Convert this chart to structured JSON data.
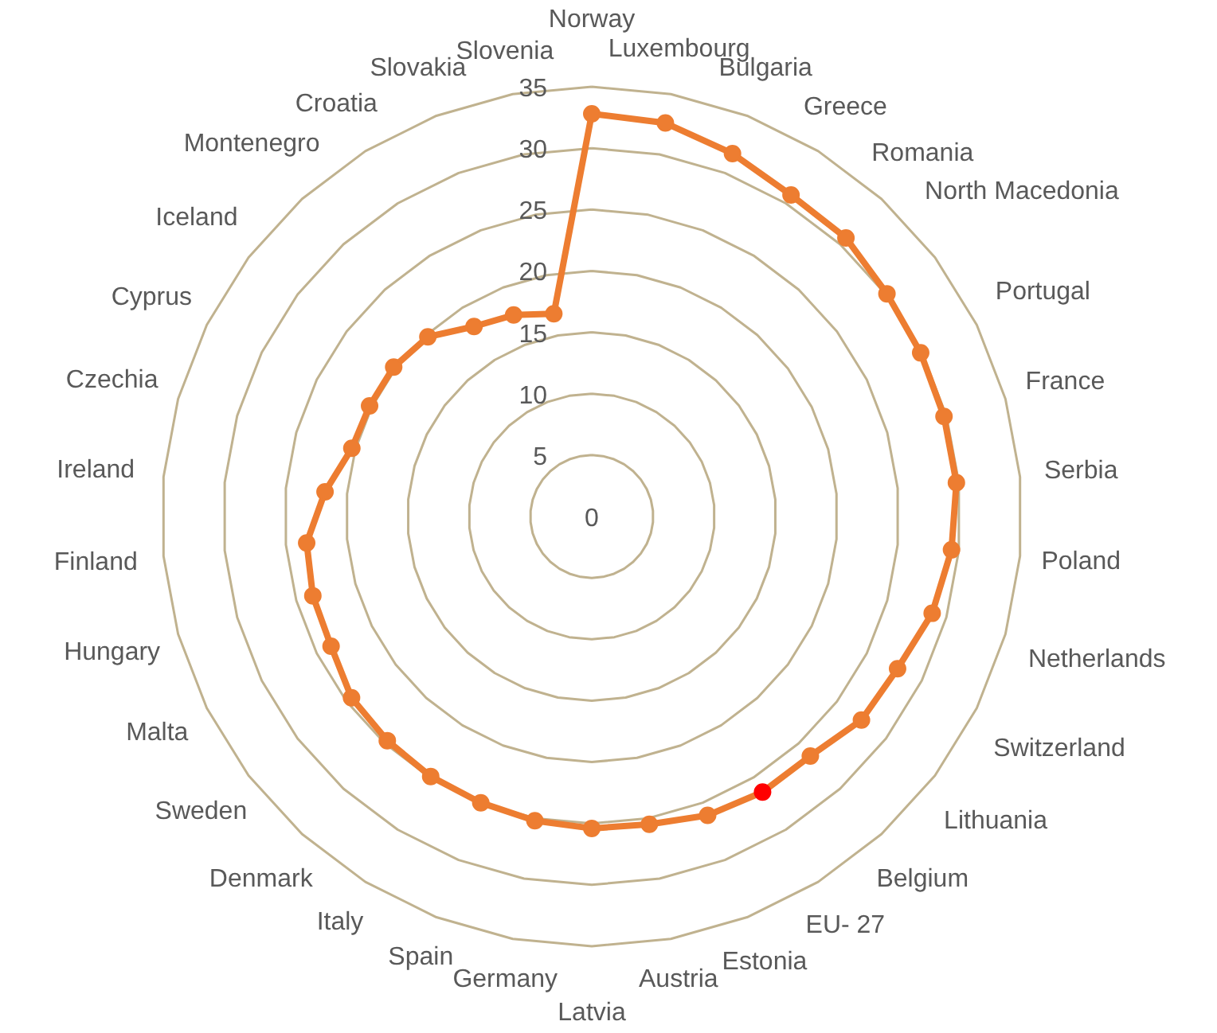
{
  "chart_data": {
    "type": "radar",
    "categories": [
      "Norway",
      "Luxembourg",
      "Bulgaria",
      "Greece",
      "Romania",
      "North Macedonia",
      "Portugal",
      "France",
      "Serbia",
      "Poland",
      "Netherlands",
      "Switzerland",
      "Lithuania",
      "Belgium",
      "EU- 27",
      "Estonia",
      "Austria",
      "Latvia",
      "Germany",
      "Spain",
      "Italy",
      "Denmark",
      "Sweden",
      "Malta",
      "Hungary",
      "Finland",
      "Ireland",
      "Czechia",
      "Cyprus",
      "Iceland",
      "Montenegro",
      "Croatia",
      "Slovakia",
      "Slovenia"
    ],
    "series": [
      {
        "color": "#ed7d31",
        "colors": [
          "#ed7d31",
          "#ed7d31",
          "#ed7d31",
          "#ed7d31",
          "#ed7d31",
          "#ed7d31",
          "#ed7d31",
          "#ed7d31",
          "#ed7d31",
          "#ed7d31",
          "#ed7d31",
          "#ed7d31",
          "#ed7d31",
          "#ed7d31",
          "#ff0000",
          "#ed7d31",
          "#ed7d31",
          "#ed7d31",
          "#ed7d31",
          "#ed7d31",
          "#ed7d31",
          "#ed7d31",
          "#ed7d31",
          "#ed7d31",
          "#ed7d31",
          "#ed7d31",
          "#ed7d31",
          "#ed7d31",
          "#ed7d31",
          "#ed7d31",
          "#ed7d31",
          "#ed7d31",
          "#ed7d31",
          "#ed7d31"
        ],
        "values": [
          32.8,
          32.6,
          31.7,
          30.8,
          30.7,
          30.1,
          29.9,
          29.8,
          29.8,
          29.4,
          28.8,
          27.8,
          27.5,
          26.4,
          26.4,
          26.1,
          25.5,
          25.4,
          25.2,
          25.0,
          24.9,
          24.7,
          24.5,
          23.7,
          23.6,
          23.3,
          21.8,
          20.3,
          20.2,
          20.2,
          19.8,
          18.2,
          17.6,
          16.8
        ]
      }
    ],
    "ylim": [
      0,
      35
    ],
    "yticks": [
      0,
      5,
      10,
      15,
      20,
      25,
      30,
      35
    ],
    "marker": "circle",
    "grid": true
  }
}
